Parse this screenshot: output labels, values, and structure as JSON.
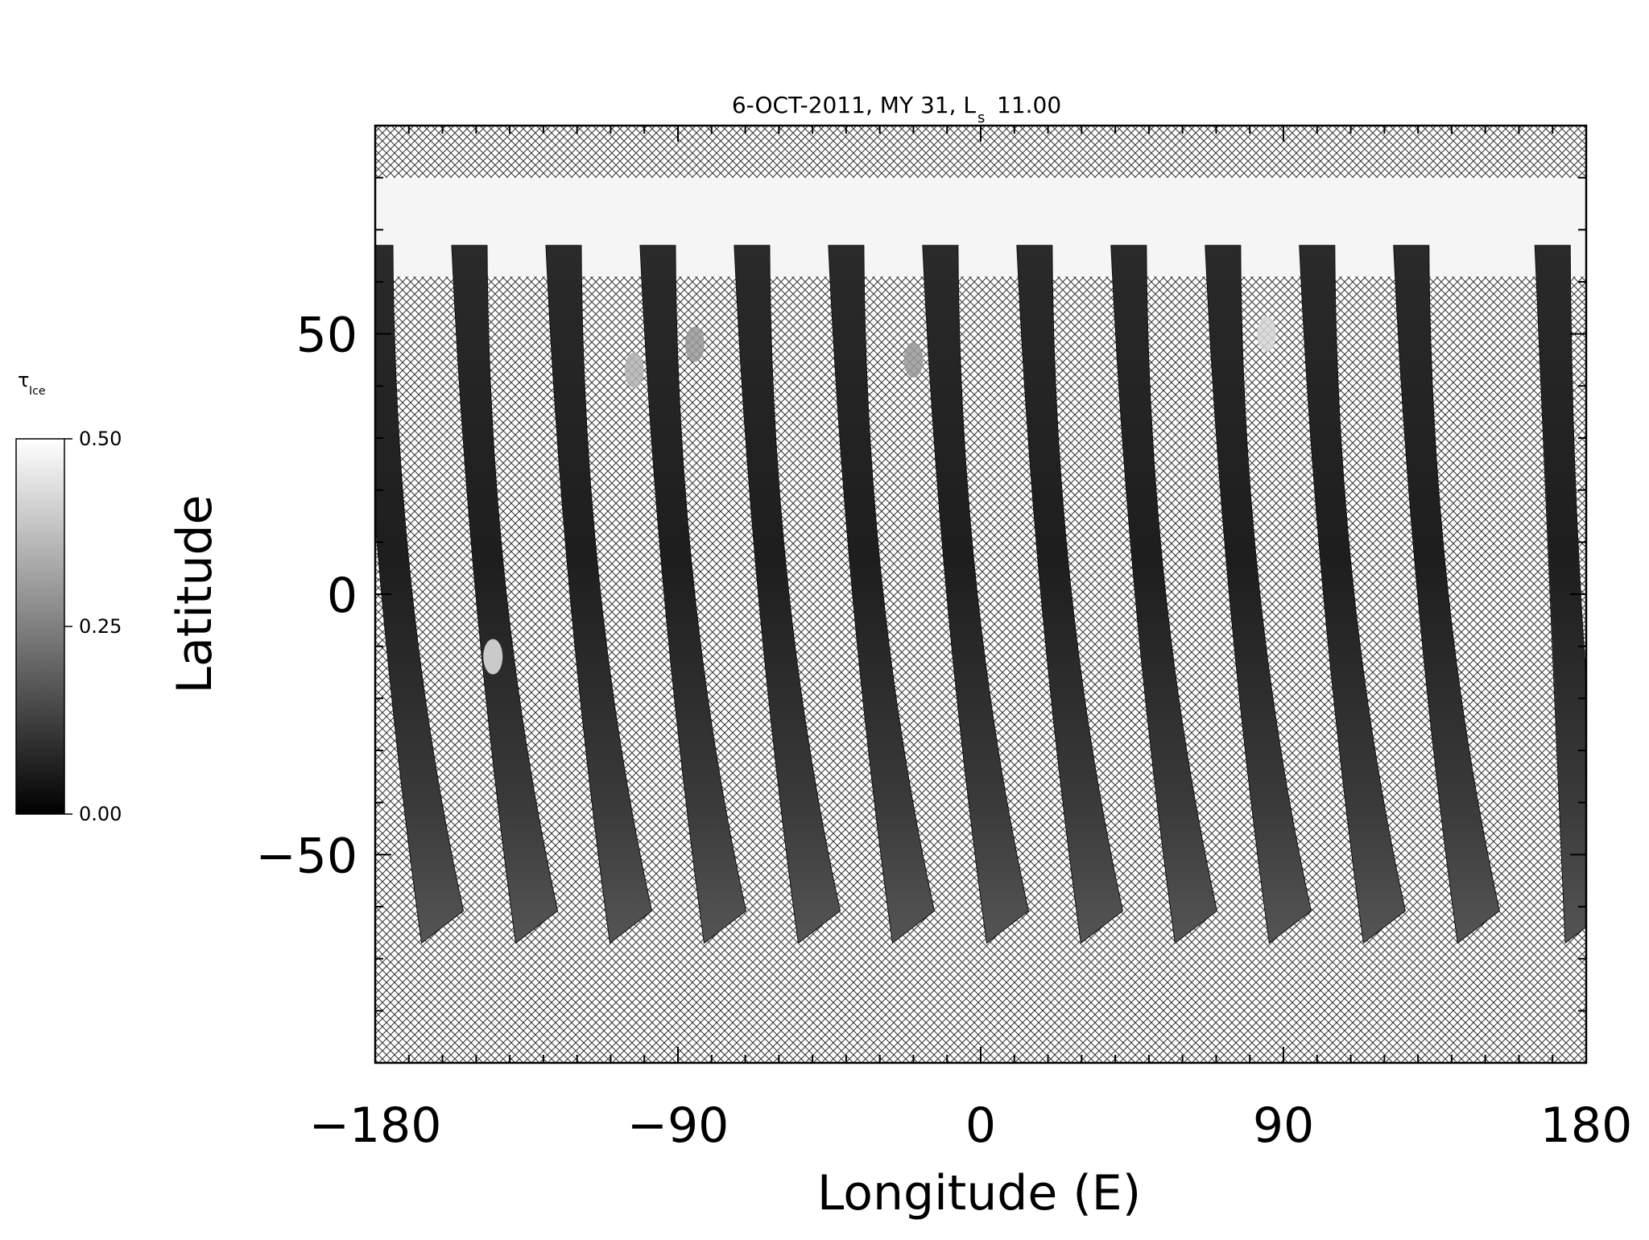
{
  "chart_data": {
    "type": "heatmap",
    "title": "6-OCT-2011, MY 31,  L",
    "title_subscript": "s",
    "title_value": "11.00",
    "xlabel": "Longitude (E)",
    "ylabel": "Latitude",
    "xlim": [
      -180,
      180
    ],
    "ylim": [
      -90,
      90
    ],
    "x_ticks": [
      -180,
      -90,
      0,
      90,
      180
    ],
    "y_ticks": [
      50,
      0,
      -50
    ],
    "colorbar": {
      "title": "τ",
      "title_subscript": "Ice",
      "range": [
        0.0,
        0.5
      ],
      "ticks": [
        "0.50",
        "0.25",
        "0.00"
      ],
      "tick_values": [
        0.5,
        0.25,
        0.0
      ],
      "colors": [
        "#000000",
        "#ffffff"
      ]
    },
    "missing_data_pattern": "crosshatch",
    "polar_cap_ice": {
      "lat_range": [
        61,
        80
      ],
      "value": 0.48
    },
    "swaths": [
      {
        "lon_north": -180,
        "lon_south": -160,
        "lat_top": 67,
        "lat_bottom": -67
      },
      {
        "lon_north": -152,
        "lon_south": -132,
        "lat_top": 67,
        "lat_bottom": -67
      },
      {
        "lon_north": -124,
        "lon_south": -104,
        "lat_top": 67,
        "lat_bottom": -67
      },
      {
        "lon_north": -96,
        "lon_south": -76,
        "lat_top": 67,
        "lat_bottom": -67
      },
      {
        "lon_north": -68,
        "lon_south": -48,
        "lat_top": 67,
        "lat_bottom": -67
      },
      {
        "lon_north": -40,
        "lon_south": -20,
        "lat_top": 67,
        "lat_bottom": -67
      },
      {
        "lon_north": -12,
        "lon_south": 8,
        "lat_top": 67,
        "lat_bottom": -67
      },
      {
        "lon_north": 16,
        "lon_south": 36,
        "lat_top": 67,
        "lat_bottom": -67
      },
      {
        "lon_north": 44,
        "lon_south": 64,
        "lat_top": 67,
        "lat_bottom": -67
      },
      {
        "lon_north": 72,
        "lon_south": 92,
        "lat_top": 67,
        "lat_bottom": -67
      },
      {
        "lon_north": 100,
        "lon_south": 120,
        "lat_top": 67,
        "lat_bottom": -67
      },
      {
        "lon_north": 128,
        "lon_south": 148,
        "lat_top": 67,
        "lat_bottom": -67
      },
      {
        "lon_north": 170,
        "lon_south": 180,
        "lat_top": 67,
        "lat_bottom": -67
      }
    ],
    "cloud_features": [
      {
        "lon": -145,
        "lat": -12,
        "value": 0.45
      },
      {
        "lon": -103,
        "lat": 43,
        "value": 0.35
      },
      {
        "lon": -85,
        "lat": 48,
        "value": 0.3
      },
      {
        "lon": -20,
        "lat": 45,
        "value": 0.3
      },
      {
        "lon": 85,
        "lat": 50,
        "value": 0.42
      }
    ]
  }
}
